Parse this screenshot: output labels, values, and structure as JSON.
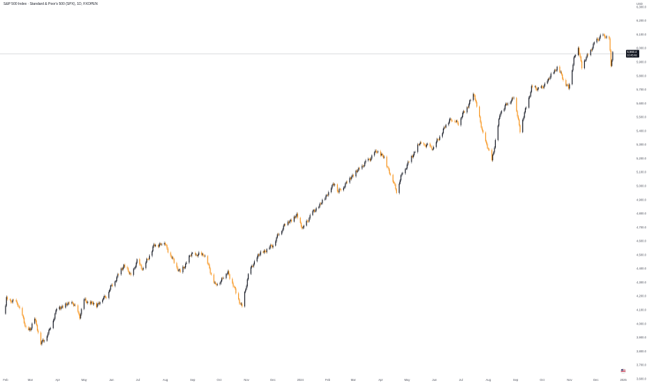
{
  "header": {
    "title": "S&P 500 Index · Standard & Poor's 500 (SPX), 1D, FXOPEN",
    "currency": "USD"
  },
  "last_price": {
    "value": 5960.4,
    "label": "5,960.4",
    "countdown": "10:45:48",
    "color": "#131722"
  },
  "colors": {
    "up": "#131722",
    "down": "#f7931a",
    "grid_line": "#b2b5be"
  },
  "chart_data": {
    "type": "candlestick",
    "title": "S&P 500 Index · Standard & Poor's 500 (SPX), 1D, FXOPEN",
    "xlabel": "",
    "ylabel": "",
    "ylim": [
      3600,
      6320
    ],
    "x_range": [
      "2023-02-01",
      "2025-01-08"
    ],
    "y_ticks": [
      {
        "value": 3600,
        "label": "3,600.0"
      },
      {
        "value": 3700,
        "label": "3,700.0"
      },
      {
        "value": 3800,
        "label": "3,800.0"
      },
      {
        "value": 3900,
        "label": "3,900.0"
      },
      {
        "value": 4000,
        "label": "4,000.0"
      },
      {
        "value": 4100,
        "label": "4,100.0"
      },
      {
        "value": 4200,
        "label": "4,200.0"
      },
      {
        "value": 4300,
        "label": "4,300.0"
      },
      {
        "value": 4400,
        "label": "4,400.0"
      },
      {
        "value": 4500,
        "label": "4,500.0"
      },
      {
        "value": 4600,
        "label": "4,600.0"
      },
      {
        "value": 4700,
        "label": "4,700.0"
      },
      {
        "value": 4800,
        "label": "4,800.0"
      },
      {
        "value": 4900,
        "label": "4,900.0"
      },
      {
        "value": 5000,
        "label": "5,000.0"
      },
      {
        "value": 5100,
        "label": "5,100.0"
      },
      {
        "value": 5200,
        "label": "5,200.0"
      },
      {
        "value": 5300,
        "label": "5,300.0"
      },
      {
        "value": 5400,
        "label": "5,400.0"
      },
      {
        "value": 5500,
        "label": "5,500.0"
      },
      {
        "value": 5600,
        "label": "5,600.0"
      },
      {
        "value": 5700,
        "label": "5,700.0"
      },
      {
        "value": 5800,
        "label": "5,800.0"
      },
      {
        "value": 5900,
        "label": "5,900.0"
      },
      {
        "value": 6000,
        "label": "6,000.0"
      },
      {
        "value": 6100,
        "label": "6,100.0"
      },
      {
        "value": 6200,
        "label": "6,200.0"
      },
      {
        "value": 6300,
        "label": "6,300.0"
      }
    ],
    "x_ticks": [
      {
        "date": "2023-02-01",
        "label": "Feb"
      },
      {
        "date": "2023-03-01",
        "label": "Mar"
      },
      {
        "date": "2023-04-01",
        "label": "Apr"
      },
      {
        "date": "2023-05-01",
        "label": "May"
      },
      {
        "date": "2023-06-01",
        "label": "Jun"
      },
      {
        "date": "2023-07-01",
        "label": "Jul"
      },
      {
        "date": "2023-08-01",
        "label": "Aug"
      },
      {
        "date": "2023-09-01",
        "label": "Sep"
      },
      {
        "date": "2023-10-01",
        "label": "Oct"
      },
      {
        "date": "2023-11-01",
        "label": "Nov"
      },
      {
        "date": "2023-12-01",
        "label": "Dec"
      },
      {
        "date": "2024-01-01",
        "label": "2024"
      },
      {
        "date": "2024-02-01",
        "label": "Feb"
      },
      {
        "date": "2024-03-01",
        "label": "Mar"
      },
      {
        "date": "2024-04-01",
        "label": "Apr"
      },
      {
        "date": "2024-05-01",
        "label": "May"
      },
      {
        "date": "2024-06-01",
        "label": "Jun"
      },
      {
        "date": "2024-07-01",
        "label": "Jul"
      },
      {
        "date": "2024-08-01",
        "label": "Aug"
      },
      {
        "date": "2024-09-01",
        "label": "Sep"
      },
      {
        "date": "2024-10-01",
        "label": "Oct"
      },
      {
        "date": "2024-11-01",
        "label": "Nov"
      },
      {
        "date": "2024-12-01",
        "label": "Dec"
      },
      {
        "date": "2025-01-01",
        "label": "2025"
      }
    ],
    "close_path": [
      [
        "2023-01-31",
        4076
      ],
      [
        "2023-02-02",
        4179
      ],
      [
        "2023-02-15",
        4147
      ],
      [
        "2023-02-24",
        3970
      ],
      [
        "2023-03-01",
        3951
      ],
      [
        "2023-03-06",
        4048
      ],
      [
        "2023-03-13",
        3855
      ],
      [
        "2023-03-22",
        3937
      ],
      [
        "2023-03-31",
        4109
      ],
      [
        "2023-04-18",
        4154
      ],
      [
        "2023-04-26",
        4055
      ],
      [
        "2023-05-01",
        4167
      ],
      [
        "2023-05-15",
        4136
      ],
      [
        "2023-05-26",
        4205
      ],
      [
        "2023-06-02",
        4282
      ],
      [
        "2023-06-15",
        4425
      ],
      [
        "2023-06-23",
        4348
      ],
      [
        "2023-06-30",
        4450
      ],
      [
        "2023-07-07",
        4398
      ],
      [
        "2023-07-19",
        4565
      ],
      [
        "2023-07-31",
        4589
      ],
      [
        "2023-08-09",
        4468
      ],
      [
        "2023-08-18",
        4370
      ],
      [
        "2023-08-31",
        4508
      ],
      [
        "2023-09-05",
        4497
      ],
      [
        "2023-09-14",
        4505
      ],
      [
        "2023-09-27",
        4274
      ],
      [
        "2023-10-11",
        4376
      ],
      [
        "2023-10-20",
        4224
      ],
      [
        "2023-10-27",
        4117
      ],
      [
        "2023-11-03",
        4358
      ],
      [
        "2023-11-14",
        4495
      ],
      [
        "2023-11-30",
        4567
      ],
      [
        "2023-12-14",
        4719
      ],
      [
        "2023-12-28",
        4783
      ],
      [
        "2024-01-04",
        4688
      ],
      [
        "2024-01-12",
        4783
      ],
      [
        "2024-01-24",
        4868
      ],
      [
        "2024-02-09",
        5026
      ],
      [
        "2024-02-13",
        4953
      ],
      [
        "2024-02-28",
        5069
      ],
      [
        "2024-03-08",
        5123
      ],
      [
        "2024-03-28",
        5254
      ],
      [
        "2024-04-05",
        5204
      ],
      [
        "2024-04-19",
        4967
      ],
      [
        "2024-04-26",
        5099
      ],
      [
        "2024-05-15",
        5308
      ],
      [
        "2024-05-31",
        5277
      ],
      [
        "2024-06-18",
        5487
      ],
      [
        "2024-06-28",
        5460
      ],
      [
        "2024-07-16",
        5667
      ],
      [
        "2024-07-25",
        5399
      ],
      [
        "2024-08-05",
        5186
      ],
      [
        "2024-08-15",
        5543
      ],
      [
        "2024-08-30",
        5648
      ],
      [
        "2024-09-06",
        5408
      ],
      [
        "2024-09-19",
        5713
      ],
      [
        "2024-10-01",
        5708
      ],
      [
        "2024-10-18",
        5864
      ],
      [
        "2024-10-31",
        5705
      ],
      [
        "2024-11-06",
        5929
      ],
      [
        "2024-11-11",
        6001
      ],
      [
        "2024-11-15",
        5870
      ],
      [
        "2024-11-29",
        6032
      ],
      [
        "2024-12-06",
        6090
      ],
      [
        "2024-12-16",
        6074
      ],
      [
        "2024-12-18",
        5872
      ],
      [
        "2024-12-20",
        5960
      ]
    ]
  }
}
